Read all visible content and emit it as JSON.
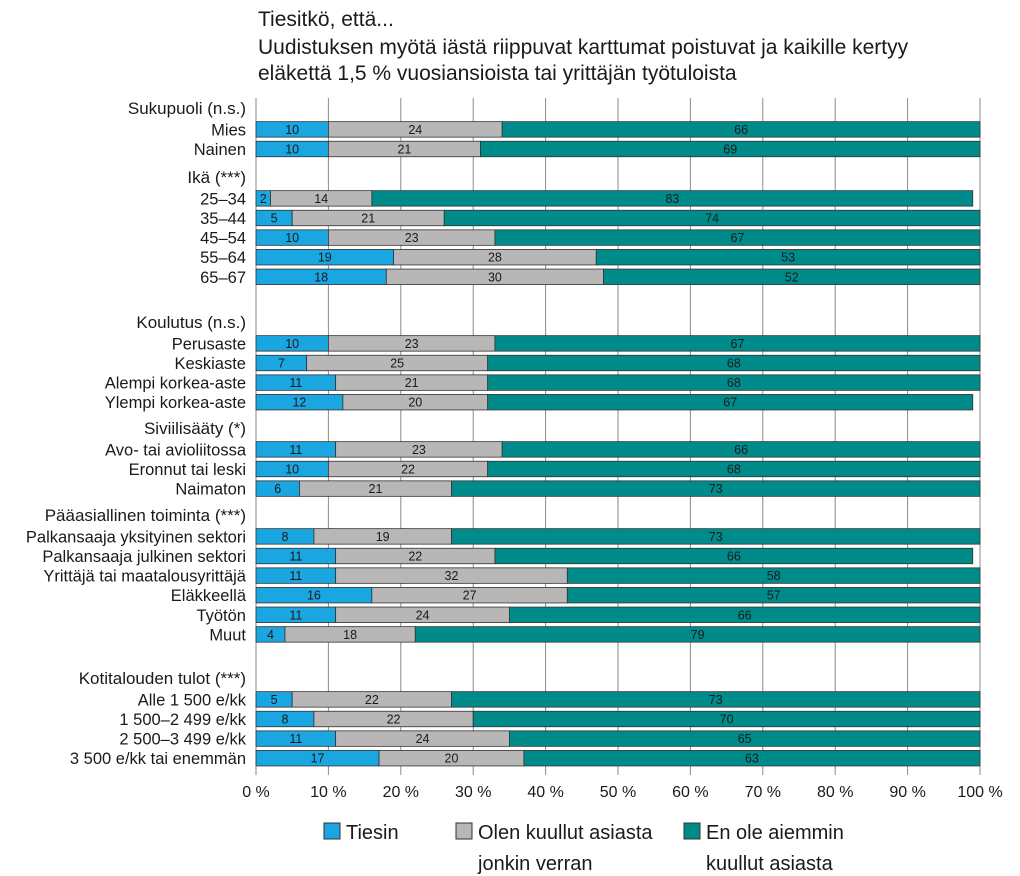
{
  "chart_data": {
    "type": "bar",
    "orientation": "horizontal",
    "stacked": true,
    "percent": true,
    "title_lines": [
      "Tiesitkö, että...",
      "Uudistuksen myötä iästä riippuvat karttumat poistuvat ja kaikille kertyy",
      "eläkettä 1,5 % vuosiansioista tai yrittäjän työtuloista"
    ],
    "xlim": [
      0,
      100
    ],
    "xticks": [
      "0 %",
      "10 %",
      "20 %",
      "30 %",
      "40 %",
      "50 %",
      "60 %",
      "70 %",
      "80 %",
      "90 %",
      "100 %"
    ],
    "grid": "vertical",
    "legend_position": "bottom",
    "series": [
      {
        "name": "Tiesin",
        "name_lines": [
          "Tiesin"
        ],
        "color": "#1aa6e0"
      },
      {
        "name": "Olen kuullut asiasta jonkin verran",
        "name_lines": [
          "Olen kuullut asiasta",
          "jonkin verran"
        ],
        "color": "#b8b6b6"
      },
      {
        "name": "En ole aiemmin kuullut asiasta",
        "name_lines": [
          "En ole aiemmin",
          "kuullut asiasta"
        ],
        "color": "#008b8b"
      }
    ],
    "groups": [
      {
        "label": "Sukupuoli (n.s.)",
        "rows": [
          {
            "label": "Mies",
            "values": [
              10,
              24,
              66
            ]
          },
          {
            "label": "Nainen",
            "values": [
              10,
              21,
              69
            ]
          }
        ]
      },
      {
        "label": "Ikä (***)",
        "rows": [
          {
            "label": "25–34",
            "values": [
              2,
              14,
              83
            ]
          },
          {
            "label": "35–44",
            "values": [
              5,
              21,
              74
            ]
          },
          {
            "label": "45–54",
            "values": [
              10,
              23,
              67
            ]
          },
          {
            "label": "55–64",
            "values": [
              19,
              28,
              53
            ]
          },
          {
            "label": "65–67",
            "values": [
              18,
              30,
              52
            ]
          }
        ]
      },
      {
        "label": "Koulutus (n.s.)",
        "rows": [
          {
            "label": "Perusaste",
            "values": [
              10,
              23,
              67
            ]
          },
          {
            "label": "Keskiaste",
            "values": [
              7,
              25,
              68
            ]
          },
          {
            "label": "Alempi korkea-aste",
            "values": [
              11,
              21,
              68
            ]
          },
          {
            "label": "Ylempi korkea-aste",
            "values": [
              12,
              20,
              67
            ]
          }
        ]
      },
      {
        "label": "Siviilisääty (*)",
        "rows": [
          {
            "label": "Avo- tai avioliitossa",
            "values": [
              11,
              23,
              66
            ]
          },
          {
            "label": "Eronnut tai leski",
            "values": [
              10,
              22,
              68
            ]
          },
          {
            "label": "Naimaton",
            "values": [
              6,
              21,
              73
            ]
          }
        ]
      },
      {
        "label": "Pääasiallinen toiminta (***)",
        "rows": [
          {
            "label": "Palkansaaja yksityinen sektori",
            "values": [
              8,
              19,
              73
            ]
          },
          {
            "label": "Palkansaaja julkinen sektori",
            "values": [
              11,
              22,
              66
            ]
          },
          {
            "label": "Yrittäjä tai maatalousyrittäjä",
            "values": [
              11,
              32,
              58
            ]
          },
          {
            "label": "Eläkkeellä",
            "values": [
              16,
              27,
              57
            ]
          },
          {
            "label": "Työtön",
            "values": [
              11,
              24,
              66
            ]
          },
          {
            "label": "Muut",
            "values": [
              4,
              18,
              79
            ]
          }
        ]
      },
      {
        "label": "Kotitalouden tulot (***)",
        "rows": [
          {
            "label": "Alle 1 500 e/kk",
            "values": [
              5,
              22,
              73
            ]
          },
          {
            "label": "1 500–2 499 e/kk",
            "values": [
              8,
              22,
              70
            ]
          },
          {
            "label": "2 500–3 499 e/kk",
            "values": [
              11,
              24,
              65
            ]
          },
          {
            "label": "3 500 e/kk tai enemmän",
            "values": [
              17,
              20,
              63
            ]
          }
        ]
      }
    ]
  }
}
